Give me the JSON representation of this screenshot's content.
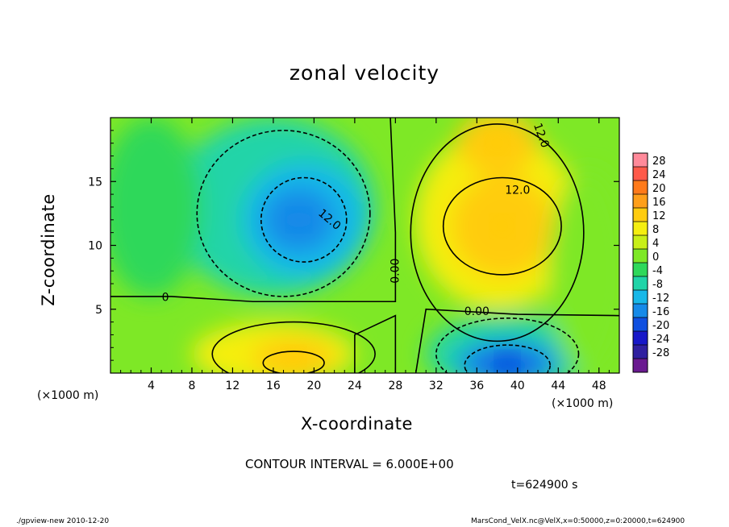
{
  "header": {
    "title": "zonal velocity",
    "contour_interval": "CONTOUR INTERVAL = 6.000E+00",
    "time": "t=624900 s"
  },
  "footer": {
    "left": "./gpview-new  2010-12-20",
    "right": "MarsCond_VelX.nc@VelX,x=0:50000,z=0:20000,t=624900"
  },
  "axes": {
    "x_unit_left": "(×1000 m)",
    "x_unit_right": "(×1000 m)"
  },
  "chart_data": {
    "type": "heatmap",
    "title": "zonal velocity",
    "xlabel": "X-coordinate",
    "ylabel": "Z-coordinate",
    "x_unit": "(×1000 m)",
    "xlim": [
      0,
      50
    ],
    "ylim": [
      0,
      20
    ],
    "x_ticks": [
      4,
      8,
      12,
      16,
      20,
      24,
      28,
      32,
      36,
      40,
      44,
      48
    ],
    "y_ticks": [
      5,
      10,
      15
    ],
    "contour_interval": 6.0,
    "colorbar": {
      "levels": [
        28,
        24,
        20,
        16,
        12,
        8,
        4,
        0,
        -4,
        -8,
        -12,
        -16,
        -20,
        -24,
        -28
      ],
      "colors": [
        "#ff8a9a",
        "#ff5a4a",
        "#ff7a1a",
        "#ff9f1a",
        "#ffcc10",
        "#f5ee10",
        "#c8ef18",
        "#7ee826",
        "#2ed85a",
        "#20d4a8",
        "#18b8e8",
        "#168ae8",
        "#1050e0",
        "#1818c8",
        "#3020a0",
        "#6a1a90"
      ]
    },
    "features": [
      {
        "kind": "min",
        "x": 18.5,
        "z": 12,
        "value": -14
      },
      {
        "kind": "max",
        "x": 38.5,
        "z": 11.5,
        "value": 14
      },
      {
        "kind": "max",
        "x": 38,
        "z": 18,
        "value": 12
      },
      {
        "kind": "min",
        "x": 39,
        "z": 0.8,
        "value": -18
      },
      {
        "kind": "max",
        "x": 18,
        "z": 1.2,
        "value": 15
      }
    ],
    "contour_labels": [
      {
        "text": "12.0",
        "x": 21.5,
        "z": 12,
        "angle": 40
      },
      {
        "text": "0.00",
        "x": 28,
        "z": 8,
        "angle": -90
      },
      {
        "text": "0.00",
        "x": 36,
        "z": 4.8,
        "angle": 0
      },
      {
        "text": "12.0",
        "x": 40,
        "z": 14.3,
        "angle": 0
      },
      {
        "text": "12.0",
        "x": 42.3,
        "z": 18.6,
        "angle": 70
      },
      {
        "text": "0",
        "x": 5.4,
        "z": 5.9,
        "angle": 0
      }
    ]
  }
}
